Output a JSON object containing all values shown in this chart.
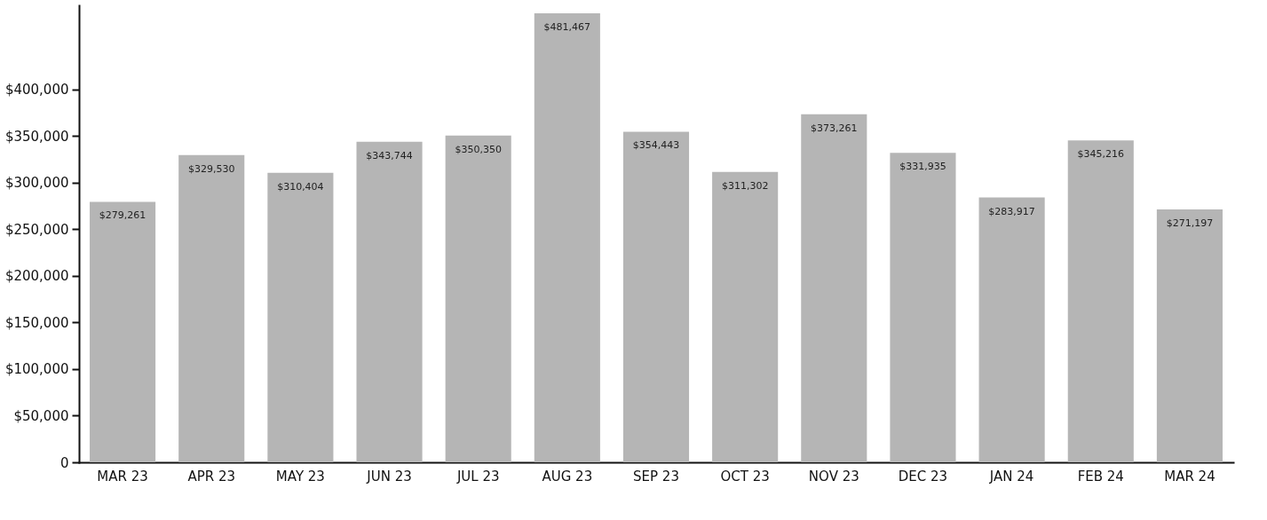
{
  "chart_data": {
    "type": "bar",
    "categories": [
      "MAR 23",
      "APR 23",
      "MAY 23",
      "JUN 23",
      "JUL 23",
      "AUG 23",
      "SEP 23",
      "OCT 23",
      "NOV 23",
      "DEC 23",
      "JAN 24",
      "FEB 24",
      "MAR 24"
    ],
    "values": [
      279261,
      329530,
      310404,
      343744,
      350350,
      481467,
      354443,
      311302,
      373261,
      331935,
      283917,
      345216,
      271197
    ],
    "color": "#b5b5b5",
    "ylim": [
      0,
      490000
    ],
    "yticks": [
      {
        "value": 0,
        "label": "0"
      },
      {
        "value": 50000,
        "label": "$50,000"
      },
      {
        "value": 100000,
        "label": "$100,000"
      },
      {
        "value": 150000,
        "label": "$150,000"
      },
      {
        "value": 200000,
        "label": "$200,000"
      },
      {
        "value": 250000,
        "label": "$250,000"
      },
      {
        "value": 300000,
        "label": "$300,000"
      },
      {
        "value": 350000,
        "label": "$350,000"
      },
      {
        "value": 400000,
        "label": "$400,000"
      }
    ],
    "value_labels": [
      "$279,261",
      "$329,530",
      "$310,404",
      "$343,744",
      "$350,350",
      "$481,467",
      "$354,443",
      "$311,302",
      "$373,261",
      "$331,935",
      "$283,917",
      "$345,216",
      "$271,197"
    ],
    "grid": false
  }
}
